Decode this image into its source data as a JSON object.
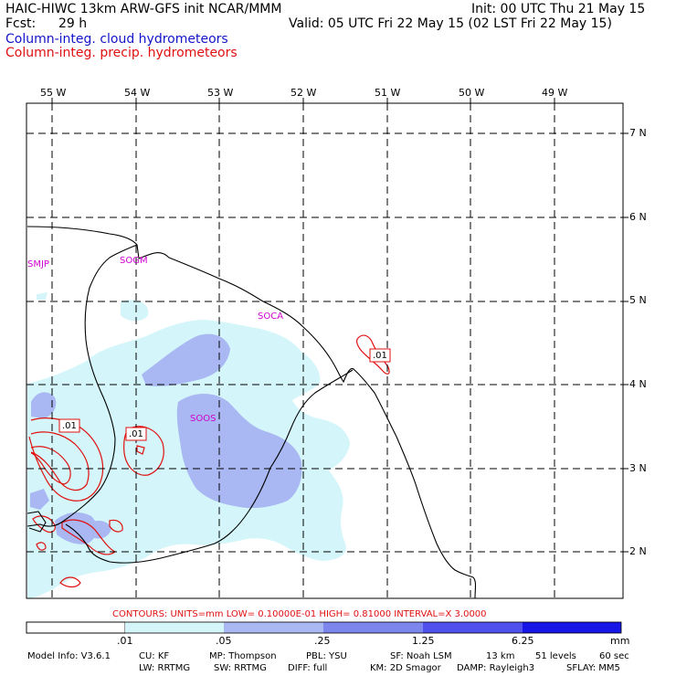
{
  "header": {
    "left_line1": "HAIC-HIWC 13km ARW-GFS init   NCAR/MMM",
    "fcst_label": "Fcst:",
    "fcst_value": "29 h",
    "init": "Init: 00 UTC Thu 21 May 15",
    "valid": "Valid: 05 UTC Fri 22 May 15 (02 LST Fri 22 May 15)",
    "field_cloud": "Column-integ. cloud hydrometeors",
    "field_precip": "Column-integ. precip. hydrometeors"
  },
  "colors": {
    "cloud_text": "#1414c8",
    "precip_text": "#e01010",
    "station_text": "#d000d0",
    "band1": "#d4f6fa",
    "band2": "#a9b8f2",
    "band3": "#7c86ec",
    "band4": "#5050ec",
    "band5": "#1616e6",
    "contour": "#e01010"
  },
  "lon_labels": [
    "55 W",
    "54 W",
    "53 W",
    "52 W",
    "51 W",
    "50 W",
    "49 W"
  ],
  "lat_labels": [
    "7 N",
    "6 N",
    "5 N",
    "4 N",
    "3 N",
    "2 N"
  ],
  "stations": [
    "SMJP",
    "SOGM",
    "SOCA",
    "SOOS"
  ],
  "contour_labels": [
    ".01",
    ".01",
    ".01"
  ],
  "contours_line": "CONTOURS:  UNITS=mm  LOW= 0.10000E-01  HIGH= 0.81000      INTERVAL=X  3.0000",
  "colorbar": {
    "ticks": [
      ".01",
      ".05",
      ".25",
      "1.25",
      "6.25"
    ],
    "units": "mm"
  },
  "model_info": {
    "line1": [
      "Model Info: V3.6.1",
      "CU: KF",
      "MP: Thompson",
      "PBL: YSU",
      "SF: Noah LSM",
      "13 km",
      "51 levels",
      "60 sec"
    ],
    "line2": [
      "LW: RRTMG",
      "SW: RRTMG",
      "DIFF: full",
      "KM: 2D Smagor",
      "DAMP: Rayleigh3",
      "SFLAY: MM5"
    ]
  }
}
